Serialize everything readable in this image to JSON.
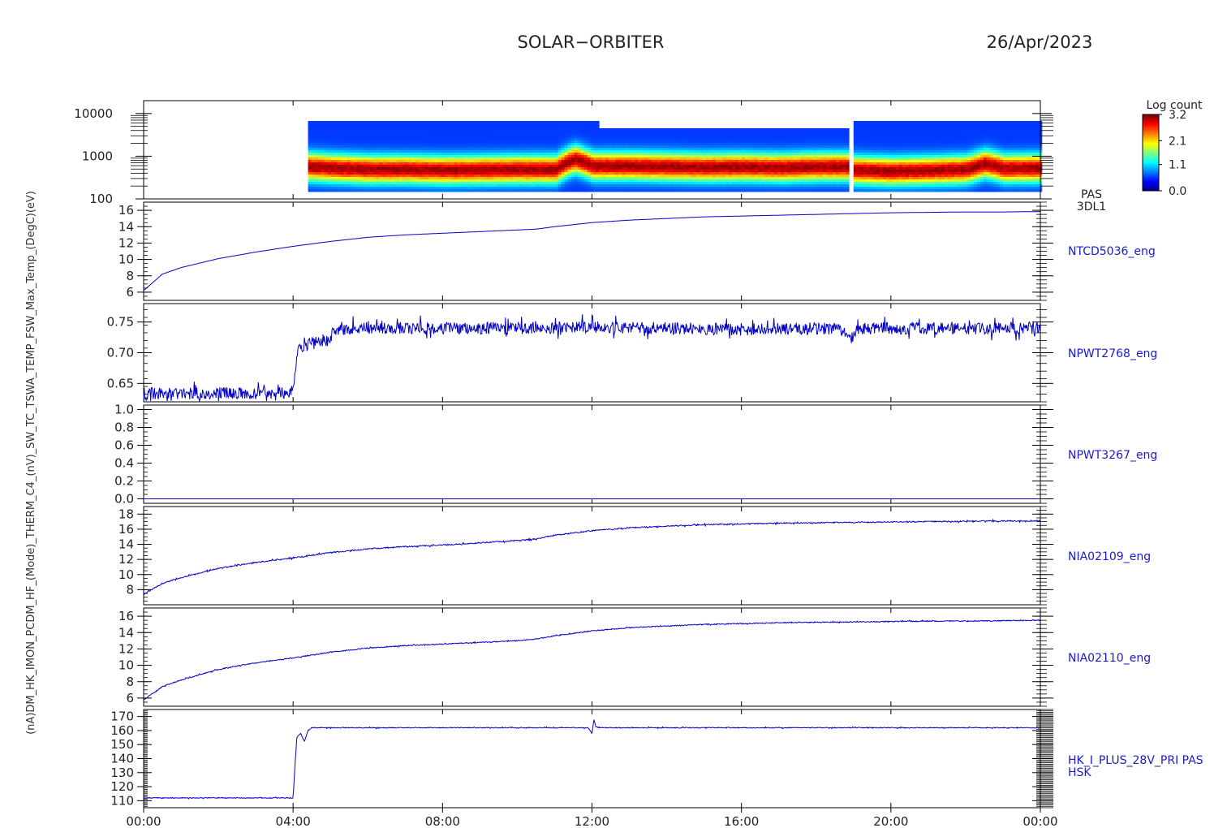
{
  "header": {
    "mission": "SOLAR−ORBITER",
    "date": "26/Apr/2023"
  },
  "colors": {
    "axis": "#000000",
    "trace": "#0000c8",
    "label": "#1a1acc",
    "background": "#ffffff"
  },
  "colorbar": {
    "title": "Log count",
    "ticks": [
      "3.2",
      "2.1",
      "1.1",
      "0.0"
    ],
    "range": [
      0.0,
      3.2
    ]
  },
  "y_axis_title": "(nA)DM_HK_IMON_PCDM_HF_(Mode)_THERM_C4_(nV)_SW_TC_TSWA_TEMP_FSW_Max_Temp_(DegC)(eV)",
  "x_axis": {
    "tick_labels": [
      "00:00",
      "04:00",
      "08:00",
      "12:00",
      "16:00",
      "20:00",
      "00:00"
    ],
    "range_hours": [
      0,
      24
    ]
  },
  "chart_data": [
    {
      "type": "heatmap",
      "instrument": "PAS",
      "product": "3DL1",
      "yscale": "log",
      "ylim": [
        100,
        20000
      ],
      "y_tick_labels": [
        "10000",
        "1000",
        "100"
      ],
      "y_tick_values": [
        10000,
        1000,
        100
      ],
      "colorbar_label": "Log count",
      "data_segments_hours": [
        [
          4.4,
          12.1
        ],
        [
          12.1,
          18.8
        ],
        [
          19.0,
          24.0
        ]
      ],
      "peak_energy_eV": [
        [
          4.4,
          600
        ],
        [
          5.0,
          560
        ],
        [
          6.0,
          520
        ],
        [
          7.0,
          520
        ],
        [
          8.0,
          500
        ],
        [
          9.0,
          510
        ],
        [
          10.0,
          520
        ],
        [
          11.0,
          520
        ],
        [
          11.5,
          900
        ],
        [
          12.0,
          620
        ],
        [
          13.0,
          620
        ],
        [
          14.0,
          600
        ],
        [
          15.0,
          580
        ],
        [
          16.0,
          590
        ],
        [
          17.0,
          570
        ],
        [
          18.0,
          600
        ],
        [
          18.8,
          600
        ],
        [
          19.0,
          500
        ],
        [
          20.0,
          470
        ],
        [
          21.0,
          490
        ],
        [
          22.0,
          520
        ],
        [
          22.5,
          700
        ],
        [
          23.0,
          550
        ],
        [
          24.0,
          560
        ]
      ]
    },
    {
      "type": "line",
      "series": [
        {
          "name": "NTCD5036_eng"
        }
      ],
      "ylim": [
        5,
        17
      ],
      "y_ticks": [
        6,
        8,
        10,
        12,
        14,
        16
      ],
      "x": [
        0,
        0.5,
        1,
        2,
        3,
        4,
        5,
        6,
        7,
        8,
        9,
        10,
        10.5,
        11,
        12,
        13,
        14,
        15,
        16,
        17,
        18,
        19,
        20,
        21,
        22,
        23,
        24
      ],
      "values": [
        6.2,
        8.2,
        9.0,
        10.1,
        10.9,
        11.6,
        12.2,
        12.7,
        13.0,
        13.2,
        13.4,
        13.6,
        13.7,
        14.0,
        14.5,
        14.8,
        15.0,
        15.2,
        15.3,
        15.4,
        15.5,
        15.6,
        15.7,
        15.75,
        15.8,
        15.8,
        15.85
      ]
    },
    {
      "type": "line",
      "series": [
        {
          "name": "NPWT2768_eng"
        }
      ],
      "ylim": [
        0.62,
        0.78
      ],
      "y_ticks": [
        0.65,
        0.7,
        0.75
      ],
      "y_tick_labels": [
        "0.65",
        "0.70",
        "0.75"
      ],
      "x": [
        0,
        3.9,
        4.0,
        4.1,
        4.15,
        4.4,
        4.5,
        5.0,
        5.1,
        6,
        8,
        10,
        12,
        14,
        16,
        18,
        18.7,
        18.9,
        19.0,
        19.1,
        20,
        22,
        24
      ],
      "values": [
        0.634,
        0.634,
        0.642,
        0.69,
        0.705,
        0.71,
        0.72,
        0.72,
        0.738,
        0.74,
        0.74,
        0.74,
        0.742,
        0.74,
        0.738,
        0.74,
        0.738,
        0.725,
        0.725,
        0.74,
        0.74,
        0.74,
        0.74
      ],
      "noise_amplitude": 0.01
    },
    {
      "type": "line",
      "series": [
        {
          "name": "NPWT3267_eng"
        }
      ],
      "ylim": [
        -0.05,
        1.05
      ],
      "y_ticks": [
        0.0,
        0.2,
        0.4,
        0.6,
        0.8,
        1.0
      ],
      "y_tick_labels": [
        "0.0",
        "0.2",
        "0.4",
        "0.6",
        "0.8",
        "1.0"
      ],
      "x": [
        0,
        24
      ],
      "values": [
        0.0,
        0.0
      ]
    },
    {
      "type": "line",
      "series": [
        {
          "name": "NIA02109_eng"
        }
      ],
      "ylim": [
        6,
        19
      ],
      "y_ticks": [
        8,
        10,
        12,
        14,
        16,
        18
      ],
      "x": [
        0,
        0.5,
        1,
        2,
        3,
        4,
        5,
        6,
        7,
        8,
        9,
        10,
        10.5,
        11,
        12,
        13,
        14,
        15,
        16,
        17,
        18,
        19,
        20,
        21,
        22,
        23,
        24
      ],
      "values": [
        7.4,
        8.8,
        9.6,
        10.8,
        11.6,
        12.2,
        12.9,
        13.4,
        13.7,
        13.9,
        14.2,
        14.5,
        14.7,
        15.2,
        15.8,
        16.2,
        16.4,
        16.6,
        16.7,
        16.8,
        16.85,
        16.9,
        16.95,
        17.0,
        17.05,
        17.1,
        17.1
      ],
      "noise_amplitude": 0.08
    },
    {
      "type": "line",
      "series": [
        {
          "name": "NIA02110_eng"
        }
      ],
      "ylim": [
        5,
        17
      ],
      "y_ticks": [
        6,
        8,
        10,
        12,
        14,
        16
      ],
      "x": [
        0,
        0.5,
        1,
        2,
        3,
        4,
        5,
        6,
        7,
        8,
        9,
        10,
        10.5,
        11,
        12,
        13,
        14,
        15,
        16,
        17,
        18,
        19,
        20,
        21,
        22,
        23,
        24
      ],
      "values": [
        5.8,
        7.4,
        8.2,
        9.5,
        10.3,
        10.9,
        11.6,
        12.1,
        12.4,
        12.6,
        12.8,
        13.0,
        13.2,
        13.6,
        14.2,
        14.6,
        14.8,
        15.0,
        15.1,
        15.2,
        15.25,
        15.3,
        15.35,
        15.4,
        15.4,
        15.45,
        15.5
      ],
      "noise_amplitude": 0.06
    },
    {
      "type": "line",
      "series": [
        {
          "name": "HK_I_PLUS_28V_PRI PAS"
        }
      ],
      "product": "HSK",
      "ylim": [
        105,
        175
      ],
      "y_ticks": [
        110,
        120,
        130,
        140,
        150,
        160,
        170
      ],
      "x": [
        0,
        4.0,
        4.05,
        4.1,
        4.2,
        4.3,
        4.4,
        4.5,
        6,
        8,
        10,
        11.9,
        12.0,
        12.05,
        12.1,
        12.2,
        14,
        16,
        18,
        20,
        22,
        24
      ],
      "values": [
        112,
        112,
        135,
        155,
        158,
        152,
        160,
        162,
        162,
        162,
        162,
        162,
        158,
        168,
        163,
        162,
        162,
        162,
        162,
        162,
        162,
        162
      ],
      "noise_amplitude": 0.3
    }
  ]
}
